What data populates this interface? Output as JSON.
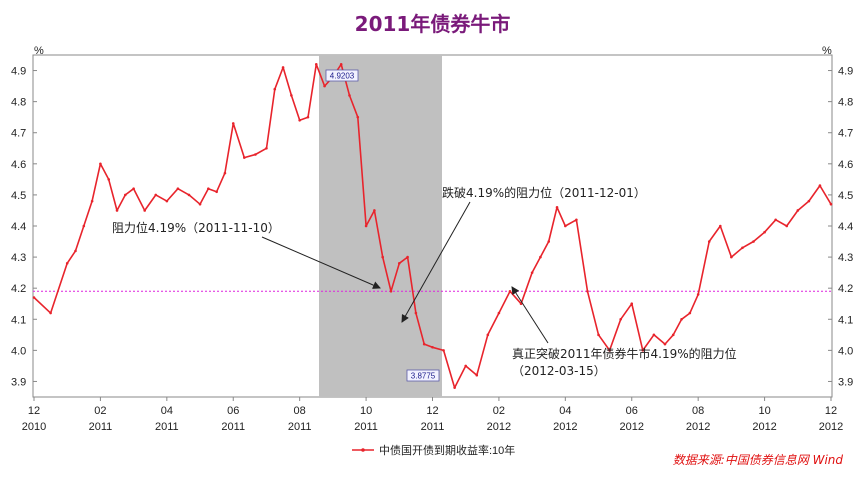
{
  "chart_data": {
    "type": "line",
    "title": "2011年债券牛市",
    "ylim": [
      3.85,
      4.95
    ],
    "y_ticks": [
      "3.9",
      "4.0",
      "4.1",
      "4.2",
      "4.3",
      "4.4",
      "4.5",
      "4.6",
      "4.7",
      "4.8",
      "4.9"
    ],
    "y_unit": "%",
    "x_ticks": [
      {
        "month": "12",
        "year": "2010"
      },
      {
        "month": "02",
        "year": "2011"
      },
      {
        "month": "04",
        "year": "2011"
      },
      {
        "month": "06",
        "year": "2011"
      },
      {
        "month": "08",
        "year": "2011"
      },
      {
        "month": "10",
        "year": "2011"
      },
      {
        "month": "12",
        "year": "2011"
      },
      {
        "month": "02",
        "year": "2012"
      },
      {
        "month": "04",
        "year": "2012"
      },
      {
        "month": "06",
        "year": "2012"
      },
      {
        "month": "08",
        "year": "2012"
      },
      {
        "month": "10",
        "year": "2012"
      },
      {
        "month": "12",
        "year": "2012"
      }
    ],
    "series": [
      {
        "name": "中债国开债到期收益率:10年",
        "color": "#e8242c",
        "x": [
          "2010-12",
          "2010-12",
          "2011-01",
          "2011-01",
          "2011-01",
          "2011-01",
          "2011-02",
          "2011-02",
          "2011-02",
          "2011-02",
          "2011-03",
          "2011-03",
          "2011-03",
          "2011-04",
          "2011-04",
          "2011-04",
          "2011-05",
          "2011-05",
          "2011-05",
          "2011-05",
          "2011-06",
          "2011-06",
          "2011-06",
          "2011-07",
          "2011-07",
          "2011-07",
          "2011-07",
          "2011-08",
          "2011-08",
          "2011-08",
          "2011-08",
          "2011-09",
          "2011-09",
          "2011-09",
          "2011-09",
          "2011-10",
          "2011-10",
          "2011-10",
          "2011-10",
          "2011-11",
          "2011-11",
          "2011-11",
          "2011-11",
          "2011-12",
          "2011-12",
          "2011-12",
          "2012-01",
          "2012-01",
          "2012-01",
          "2012-02",
          "2012-02",
          "2012-02",
          "2012-03",
          "2012-03",
          "2012-03",
          "2012-03",
          "2012-04",
          "2012-04",
          "2012-04",
          "2012-05",
          "2012-05",
          "2012-05",
          "2012-06",
          "2012-06",
          "2012-06",
          "2012-07",
          "2012-07",
          "2012-07",
          "2012-07",
          "2012-08",
          "2012-08",
          "2012-08",
          "2012-09",
          "2012-09",
          "2012-09",
          "2012-10",
          "2012-10",
          "2012-10",
          "2012-11",
          "2012-11",
          "2012-11",
          "2012-12"
        ],
        "values": [
          4.17,
          4.12,
          4.28,
          4.32,
          4.4,
          4.48,
          4.6,
          4.55,
          4.45,
          4.5,
          4.52,
          4.45,
          4.5,
          4.48,
          4.52,
          4.5,
          4.47,
          4.52,
          4.51,
          4.57,
          4.73,
          4.62,
          4.63,
          4.65,
          4.84,
          4.91,
          4.82,
          4.74,
          4.75,
          4.92,
          4.85,
          4.88,
          4.92,
          4.82,
          4.75,
          4.4,
          4.45,
          4.3,
          4.19,
          4.28,
          4.3,
          4.12,
          4.02,
          4.01,
          4.0,
          3.88,
          3.95,
          3.92,
          4.05,
          4.12,
          4.19,
          4.15,
          4.25,
          4.3,
          4.35,
          4.46,
          4.4,
          4.42,
          4.19,
          4.05,
          4.0,
          4.1,
          4.15,
          4.0,
          4.05,
          4.02,
          4.05,
          4.1,
          4.12,
          4.18,
          4.35,
          4.4,
          4.3,
          4.33,
          4.35,
          4.38,
          4.42,
          4.4,
          4.45,
          4.48,
          4.53,
          4.47
        ]
      }
    ],
    "reference_line": {
      "y": 4.19,
      "color": "#dd22dd"
    },
    "shaded_region": {
      "x_start": "2011-09",
      "x_end": "2011-12",
      "color": "#c0c0c0"
    },
    "point_labels": [
      {
        "text": "4.9203",
        "x": "2011-09",
        "y": 4.9203
      },
      {
        "text": "3.8775",
        "x": "2011-12",
        "y": 3.8775
      }
    ],
    "annotations": [
      {
        "text": "阻力位4.19%（2011-11-10）"
      },
      {
        "text": "跌破4.19%的阻力位（2011-12-01）"
      },
      {
        "text": "真正突破2011年债券牛市4.19%的阻力位"
      },
      {
        "text": "（2012-03-15）"
      }
    ],
    "legend": {
      "position": "bottom",
      "label": "中债国开债到期收益率:10年"
    },
    "grid": false
  },
  "source": "数据来源:中国债券信息网 Wind"
}
